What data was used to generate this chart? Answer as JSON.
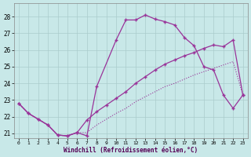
{
  "xlabel": "Windchill (Refroidissement éolien,°C)",
  "bg_color": "#c8e8e8",
  "line_color": "#993399",
  "xlim_min": -0.5,
  "xlim_max": 23.5,
  "ylim_min": 20.7,
  "ylim_max": 28.8,
  "yticks": [
    21,
    22,
    23,
    24,
    25,
    26,
    27,
    28
  ],
  "xticks": [
    0,
    1,
    2,
    3,
    4,
    5,
    6,
    7,
    8,
    9,
    10,
    11,
    12,
    13,
    14,
    15,
    16,
    17,
    18,
    19,
    20,
    21,
    22,
    23
  ],
  "curve1_x": [
    0,
    1,
    2,
    3,
    4,
    5,
    6,
    7,
    8,
    10,
    11,
    12,
    13,
    14,
    15,
    16,
    17,
    18,
    19,
    20,
    21,
    22,
    23
  ],
  "curve1_y": [
    22.8,
    22.2,
    21.85,
    21.5,
    20.9,
    20.85,
    21.05,
    20.85,
    23.8,
    26.6,
    27.8,
    27.8,
    28.1,
    27.85,
    27.7,
    27.5,
    26.75,
    26.25,
    25.0,
    24.8,
    23.3,
    22.5,
    23.3
  ],
  "curve2_x": [
    0,
    1,
    2,
    3,
    4,
    5,
    6,
    7,
    8,
    9,
    10,
    11,
    12,
    13,
    14,
    15,
    16,
    17,
    18,
    19,
    20,
    21,
    22,
    23
  ],
  "curve2_y": [
    22.8,
    22.2,
    21.85,
    21.5,
    20.9,
    20.85,
    21.05,
    21.8,
    22.3,
    22.7,
    23.1,
    23.5,
    24.0,
    24.4,
    24.8,
    25.15,
    25.4,
    25.65,
    25.85,
    26.1,
    26.3,
    26.2,
    26.6,
    23.3
  ],
  "curve3_x": [
    0,
    1,
    2,
    3,
    4,
    5,
    6,
    7,
    8,
    9,
    10,
    11,
    12,
    13,
    14,
    15,
    16,
    17,
    18,
    19,
    20,
    21,
    22,
    23
  ],
  "curve3_y": [
    22.8,
    22.2,
    21.85,
    21.5,
    20.9,
    20.85,
    21.05,
    21.05,
    21.5,
    21.85,
    22.2,
    22.5,
    22.9,
    23.2,
    23.5,
    23.8,
    24.0,
    24.25,
    24.5,
    24.7,
    24.9,
    25.1,
    25.3,
    23.3
  ],
  "grid_color": "#aacccc"
}
